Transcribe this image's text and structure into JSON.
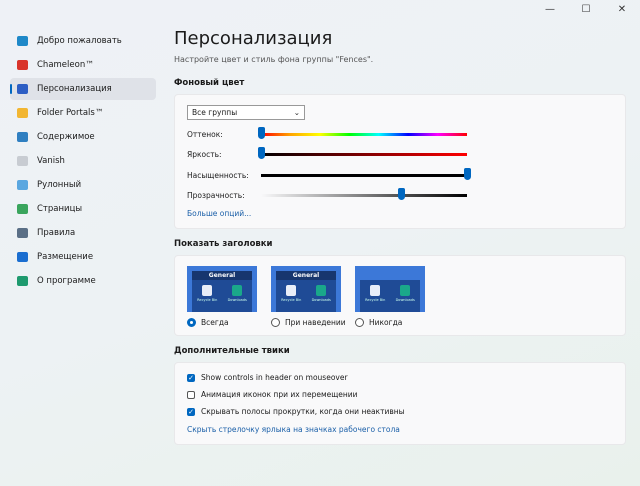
{
  "window": {
    "minimize": "—",
    "maximize": "☐",
    "close": "✕"
  },
  "sidebar": {
    "items": [
      {
        "label": "Добро пожаловать",
        "icon": "monitor-icon",
        "color": "#1e88c8"
      },
      {
        "label": "Chameleon™",
        "icon": "chameleon-icon",
        "color": "#d9342b"
      },
      {
        "label": "Персонализация",
        "icon": "personalize-icon",
        "color": "#2d5ec4",
        "selected": true
      },
      {
        "label": "Folder Portals™",
        "icon": "folder-icon",
        "color": "#f2b632"
      },
      {
        "label": "Содержимое",
        "icon": "content-icon",
        "color": "#2f7fc1"
      },
      {
        "label": "Vanish",
        "icon": "vanish-icon",
        "color": "#c8ccd2"
      },
      {
        "label": "Рулонный",
        "icon": "rollup-icon",
        "color": "#5aa7e0"
      },
      {
        "label": "Страницы",
        "icon": "pages-icon",
        "color": "#3aa55d"
      },
      {
        "label": "Правила",
        "icon": "filter-icon",
        "color": "#5a6f86"
      },
      {
        "label": "Размещение",
        "icon": "placement-icon",
        "color": "#1a6ed0"
      },
      {
        "label": "О программе",
        "icon": "user-icon",
        "color": "#1e9a6e"
      }
    ]
  },
  "main": {
    "title": "Персонализация",
    "subtitle": "Настройте цвет и стиль фона группы \"Fences\".",
    "bg": {
      "heading": "Фоновый цвет",
      "group": "Все группы",
      "sliders": [
        {
          "label": "Оттенок:",
          "value": 0,
          "track": "linear-gradient(90deg,red,orange,yellow,lime,cyan,blue,magenta,red)"
        },
        {
          "label": "Яркость:",
          "value": 0,
          "track": "linear-gradient(90deg,#000,red)"
        },
        {
          "label": "Насыщенность:",
          "value": 100,
          "track": "#000"
        },
        {
          "label": "Прозрачность:",
          "value": 68,
          "track": "linear-gradient(90deg,rgba(0,0,0,0),#000)"
        }
      ],
      "more": "Больше опций..."
    },
    "headers": {
      "heading": "Показать заголовки",
      "fence_title": "General",
      "recycle": "Recycle Bin",
      "downloads": "Downloads",
      "options": [
        {
          "label": "Всегда",
          "checked": true,
          "header": "shown"
        },
        {
          "label": "При наведении",
          "checked": false,
          "header": "shown"
        },
        {
          "label": "Никогда",
          "checked": false,
          "header": "hidden"
        }
      ]
    },
    "tweaks": {
      "heading": "Дополнительные твики",
      "checks": [
        {
          "label": "Show controls in header on mouseover",
          "checked": true
        },
        {
          "label": "Анимация иконок при их перемещении",
          "checked": false
        },
        {
          "label": "Скрывать полосы прокрутки, когда они неактивны",
          "checked": true
        }
      ],
      "link": "Скрыть стрелочку ярлыка на значках рабочего стола"
    }
  },
  "accent": "#0067c0"
}
